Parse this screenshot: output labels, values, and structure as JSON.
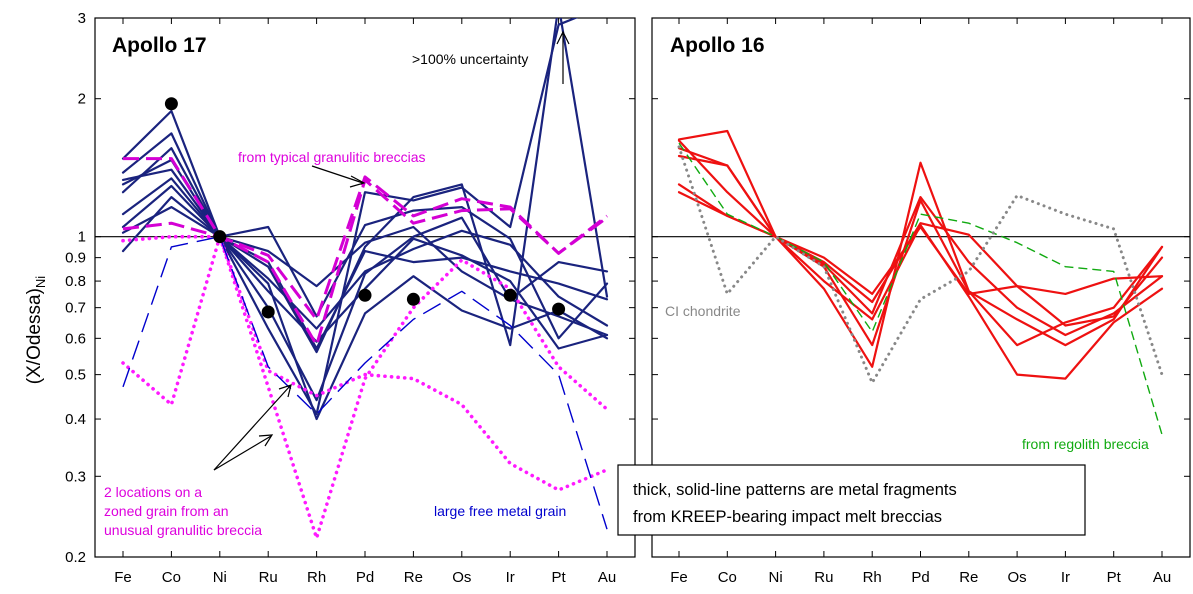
{
  "chart_data": [
    {
      "type": "line",
      "title": "Apollo 17",
      "ylabel_main": "(X/Odessa)",
      "ylabel_sub": "Ni",
      "yscale": "log",
      "ylim": [
        0.2,
        3
      ],
      "yticks": [
        {
          "v": 0.2,
          "label": "0.2"
        },
        {
          "v": 0.3,
          "label": "0.3"
        },
        {
          "v": 0.4,
          "label": "0.4"
        },
        {
          "v": 0.5,
          "label": "0.5"
        },
        {
          "v": 0.6,
          "label": "0.6"
        },
        {
          "v": 0.7,
          "label": "0.7"
        },
        {
          "v": 0.8,
          "label": "0.8"
        },
        {
          "v": 0.9,
          "label": "0.9"
        },
        {
          "v": 1,
          "label": "1"
        },
        {
          "v": 2,
          "label": "2"
        },
        {
          "v": 3,
          "label": "3"
        }
      ],
      "categories": [
        "Fe",
        "Co",
        "Ni",
        "Ru",
        "Rh",
        "Pd",
        "Re",
        "Os",
        "Ir",
        "Pt",
        "Au"
      ],
      "reference_line": 1,
      "series": [
        {
          "style": "solid",
          "color": "#1a237e",
          "values": [
            1.48,
            1.88,
            1.0,
            0.63,
            0.41,
            1.25,
            1.2,
            1.28,
            1.05,
            2.9,
            3.2
          ]
        },
        {
          "style": "solid",
          "color": "#1a237e",
          "values": [
            1.38,
            1.68,
            1.0,
            0.86,
            0.56,
            0.95,
            1.22,
            1.3,
            0.58,
            3.2,
            0.74
          ]
        },
        {
          "style": "solid",
          "color": "#1a237e",
          "values": [
            1.3,
            1.47,
            1.0,
            0.7,
            0.44,
            0.83,
            1.0,
            1.1,
            0.73,
            0.88,
            0.84
          ]
        },
        {
          "style": "solid",
          "color": "#1a237e",
          "values": [
            1.33,
            1.4,
            1.0,
            0.81,
            0.63,
            0.84,
            0.94,
            1.03,
            0.96,
            0.74,
            0.64
          ]
        },
        {
          "style": "solid",
          "color": "#1a237e",
          "values": [
            1.12,
            1.34,
            1.0,
            0.93,
            0.78,
            0.97,
            1.05,
            0.84,
            0.73,
            0.67,
            0.61
          ]
        },
        {
          "style": "solid",
          "color": "#1a237e",
          "values": [
            1.05,
            1.29,
            1.0,
            0.76,
            0.59,
            0.77,
            0.99,
            0.91,
            0.8,
            0.57,
            0.61
          ]
        },
        {
          "style": "solid",
          "color": "#1a237e",
          "values": [
            0.93,
            1.22,
            1.0,
            1.05,
            0.67,
            1.06,
            1.14,
            1.16,
            0.99,
            0.6,
            0.79
          ]
        },
        {
          "style": "solid",
          "color": "#1a237e",
          "values": [
            1.02,
            1.16,
            1.0,
            0.79,
            0.4,
            0.68,
            0.82,
            0.69,
            0.63,
            0.69,
            0.6
          ]
        },
        {
          "style": "solid",
          "color": "#1a237e",
          "values": [
            1.25,
            1.56,
            1.0,
            0.88,
            0.57,
            0.93,
            0.88,
            0.9,
            0.84,
            0.79,
            0.73
          ]
        },
        {
          "style": "dash-long",
          "color": "#d400d4",
          "values": [
            1.48,
            1.48,
            1.0,
            0.91,
            0.66,
            1.35,
            1.11,
            1.21,
            1.16,
            0.92,
            1.11
          ]
        },
        {
          "style": "dash-long",
          "color": "#d400d4",
          "values": [
            1.04,
            1.07,
            1.0,
            0.88,
            0.58,
            1.33,
            1.07,
            1.14,
            1.15,
            0.92,
            1.1
          ]
        },
        {
          "style": "dotted",
          "color": "#ff1aff",
          "values": [
            0.53,
            0.43,
            1.0,
            0.51,
            0.45,
            0.5,
            0.49,
            0.43,
            0.32,
            0.28,
            0.31
          ]
        },
        {
          "style": "dotted",
          "color": "#ff1aff",
          "values": [
            0.98,
            1.0,
            1.0,
            0.47,
            0.22,
            0.49,
            0.7,
            0.89,
            0.77,
            0.52,
            0.42
          ]
        },
        {
          "style": "dash-thin",
          "color": "#0000cd",
          "values": [
            0.47,
            0.95,
            1.0,
            0.52,
            0.41,
            0.53,
            0.66,
            0.76,
            0.64,
            0.5,
            0.23
          ]
        }
      ],
      "markers": {
        "color": "#000000",
        "points": [
          {
            "cat": "Co",
            "v": 1.95
          },
          {
            "cat": "Ni",
            "v": 1.0
          },
          {
            "cat": "Ru",
            "v": 0.685
          },
          {
            "cat": "Pd",
            "v": 0.745
          },
          {
            "cat": "Re",
            "v": 0.73
          },
          {
            "cat": "Ir",
            "v": 0.745
          },
          {
            "cat": "Pt",
            "v": 0.695
          }
        ]
      },
      "annotations": {
        "uncertainty": ">100% uncertainty",
        "typical": "from typical granulitic breccias",
        "zoned_1": "2 locations on a",
        "zoned_2": "zoned grain from an",
        "zoned_3": "unusual granulitic breccia",
        "free_metal": "large free metal grain"
      }
    },
    {
      "type": "line",
      "title": "Apollo 16",
      "yscale": "log",
      "ylim": [
        0.2,
        3
      ],
      "categories": [
        "Fe",
        "Co",
        "Ni",
        "Ru",
        "Rh",
        "Pd",
        "Re",
        "Os",
        "Ir",
        "Pt",
        "Au"
      ],
      "reference_line": 1,
      "series": [
        {
          "style": "solid",
          "color": "#ee1111",
          "values": [
            1.63,
            1.7,
            1.0,
            0.77,
            0.52,
            1.45,
            0.76,
            0.66,
            0.58,
            0.66,
            0.95
          ]
        },
        {
          "style": "solid",
          "color": "#ee1111",
          "values": [
            1.56,
            1.43,
            1.0,
            0.87,
            0.68,
            1.22,
            0.88,
            0.7,
            0.61,
            0.68,
            0.82
          ]
        },
        {
          "style": "solid",
          "color": "#ee1111",
          "values": [
            1.5,
            1.43,
            1.0,
            0.86,
            0.58,
            1.2,
            0.76,
            0.58,
            0.65,
            0.7,
            0.95
          ]
        },
        {
          "style": "solid",
          "color": "#ee1111",
          "values": [
            1.62,
            1.25,
            1.0,
            0.8,
            0.66,
            1.06,
            0.74,
            0.5,
            0.49,
            0.65,
            0.77
          ]
        },
        {
          "style": "solid",
          "color": "#ee1111",
          "values": [
            1.3,
            1.11,
            1.0,
            0.88,
            0.72,
            1.07,
            1.01,
            0.78,
            0.64,
            0.67,
            0.9
          ]
        },
        {
          "style": "solid",
          "color": "#ee1111",
          "values": [
            1.25,
            1.11,
            1.0,
            0.9,
            0.75,
            1.05,
            0.75,
            0.78,
            0.75,
            0.81,
            0.82
          ]
        },
        {
          "style": "dash-green",
          "color": "#11aa11",
          "values": [
            1.6,
            1.12,
            1.0,
            0.88,
            0.62,
            1.12,
            1.07,
            0.97,
            0.86,
            0.84,
            0.37
          ]
        },
        {
          "style": "dotted-gray",
          "color": "#888888",
          "values": [
            1.57,
            0.75,
            1.0,
            0.86,
            0.48,
            0.73,
            0.84,
            1.23,
            1.12,
            1.04,
            0.5
          ]
        }
      ],
      "annotations": {
        "ci": "CI chondrite",
        "regolith": "from regolith breccia",
        "note_1": "thick, solid-line patterns are metal fragments",
        "note_2": "from KREEP-bearing impact melt breccias"
      }
    }
  ]
}
